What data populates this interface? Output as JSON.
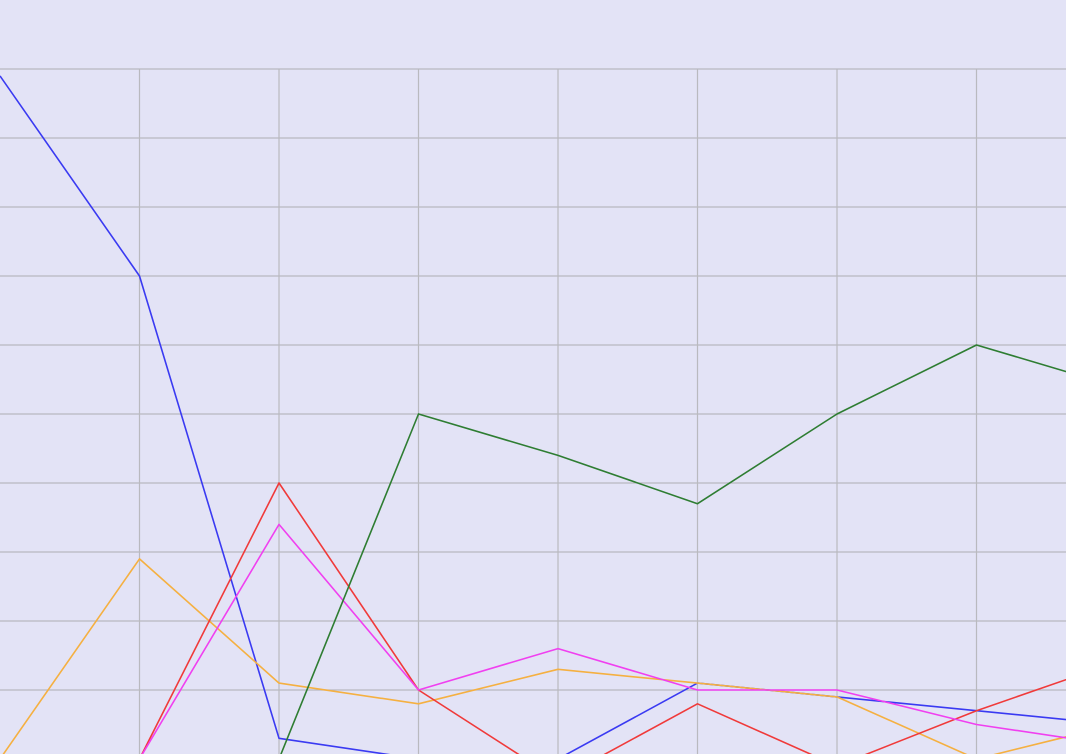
{
  "colors": {
    "background": "#e3e3f6",
    "grid": "#b9b9bf"
  },
  "chart_data": {
    "type": "line",
    "title": "",
    "xlabel": "",
    "ylabel": "",
    "grid": true,
    "x": [
      0,
      1,
      2,
      3,
      4,
      5,
      6,
      7,
      8
    ],
    "ylim": [
      0,
      10
    ],
    "series": [
      {
        "color": "#3a3af2",
        "values": [
          9.9,
          7.0,
          0.3,
          0.0,
          0.0,
          1.1,
          0.9,
          0.7,
          0.5
        ]
      },
      {
        "color": "#f5b041",
        "values": [
          0.0,
          2.9,
          1.1,
          0.8,
          1.3,
          1.1,
          0.9,
          0.0,
          0.5
        ]
      },
      {
        "color": "#f03a3a",
        "values": [
          null,
          0.0,
          4.0,
          1.0,
          -0.3,
          0.8,
          -0.1,
          0.7,
          1.4
        ]
      },
      {
        "color": "#f040f0",
        "values": [
          null,
          0.0,
          3.4,
          1.0,
          1.6,
          1.0,
          1.0,
          0.5,
          0.2
        ]
      },
      {
        "color": "#2e7d32",
        "values": [
          null,
          null,
          0.0,
          5.0,
          4.4,
          3.7,
          5.0,
          6.0,
          5.4
        ]
      }
    ]
  }
}
